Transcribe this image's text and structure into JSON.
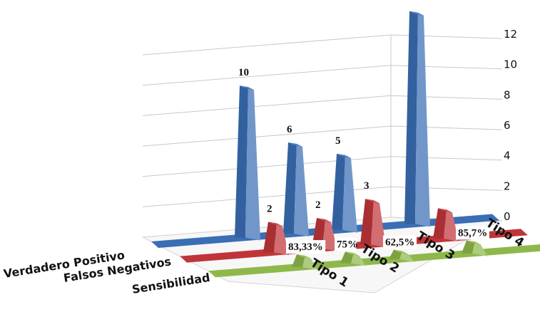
{
  "chart_data": {
    "type": "area",
    "style": "3d",
    "categories": [
      "Tipo 1",
      "Tipo 2",
      "Tipo 3",
      "Tipo 4"
    ],
    "series": [
      {
        "name": "Verdadero Positivo",
        "values": [
          10,
          6,
          5,
          14
        ],
        "labels": [
          "10",
          "6",
          "5",
          ""
        ],
        "color": "#3a6eb5"
      },
      {
        "name": "Falsos Negativos",
        "values": [
          2,
          2,
          3,
          2
        ],
        "labels": [
          "2",
          "2",
          "3",
          ""
        ],
        "color": "#c0353a"
      },
      {
        "name": "Sensibilidad",
        "values": [
          0.8333,
          0.75,
          0.625,
          0.857
        ],
        "labels": [
          "83,33%",
          "75%",
          "62,5%",
          "85,7%"
        ],
        "color": "#8fb84a"
      }
    ],
    "y_ticks": [
      "0",
      "2",
      "4",
      "6",
      "8",
      "10",
      "12"
    ],
    "ylim": [
      0,
      12
    ],
    "grid": true,
    "title": "",
    "xlabel": "",
    "ylabel": ""
  }
}
